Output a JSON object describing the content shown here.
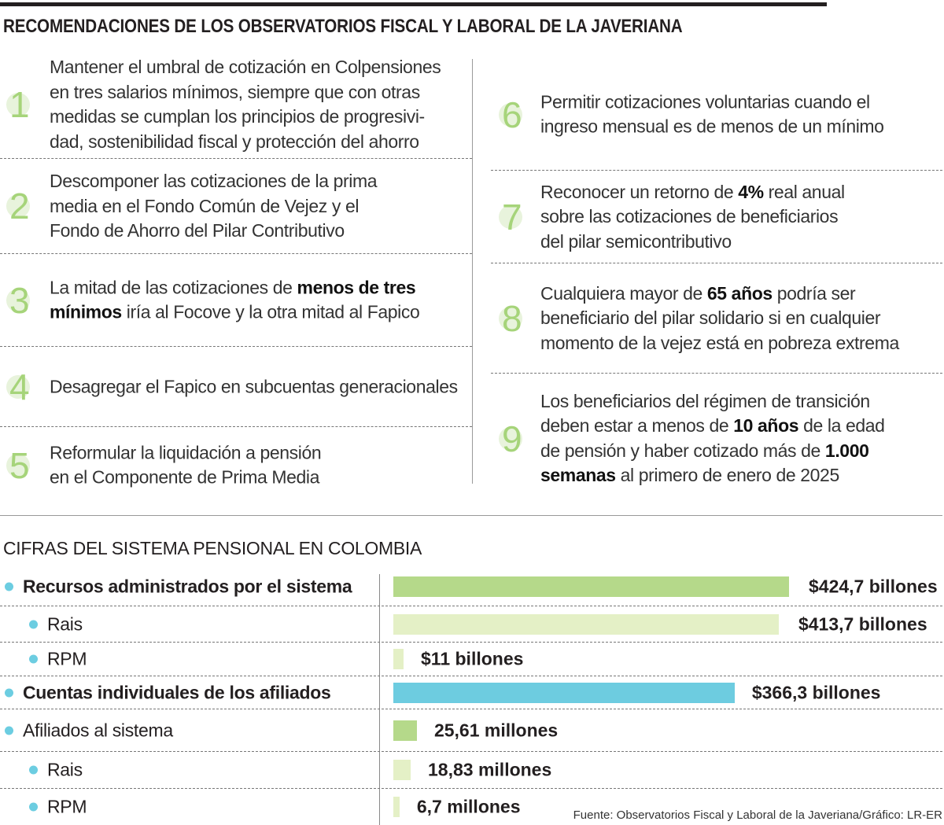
{
  "title": "RECOMENDACIONES DE LOS OBSERVATORIOS FISCAL Y LABORAL DE LA JAVERIANA",
  "recommendations": [
    {
      "number": "1",
      "lines": [
        [
          {
            "t": "Mantener el umbral de cotización en Colpensiones"
          }
        ],
        [
          {
            "t": "en tres salarios mínimos, siempre que con otras"
          }
        ],
        [
          {
            "t": "medidas se cumplan los principios de progresivi-"
          }
        ],
        [
          {
            "t": "dad, sostenibilidad fiscal y protección del ahorro"
          }
        ]
      ]
    },
    {
      "number": "2",
      "lines": [
        [
          {
            "t": "Descomponer las cotizaciones de la prima"
          }
        ],
        [
          {
            "t": "media en el Fondo Común de Vejez y  el"
          }
        ],
        [
          {
            "t": "Fondo de Ahorro del Pilar Contributivo"
          }
        ]
      ]
    },
    {
      "number": "3",
      "lines": [
        [
          {
            "t": "La mitad de las cotizaciones de "
          },
          {
            "t": "menos de tres",
            "b": true
          }
        ],
        [
          {
            "t": "mínimos",
            "b": true
          },
          {
            "t": " iría al Focove y la otra mitad al Fapico"
          }
        ]
      ]
    },
    {
      "number": "4",
      "lines": [
        [
          {
            "t": "Desagregar el Fapico en subcuentas generacionales"
          }
        ]
      ]
    },
    {
      "number": "5",
      "lines": [
        [
          {
            "t": "Reformular la liquidación a pensión"
          }
        ],
        [
          {
            "t": "en el Componente de Prima Media"
          }
        ]
      ]
    },
    {
      "number": "6",
      "lines": [
        [
          {
            "t": "Permitir cotizaciones voluntarias cuando el"
          }
        ],
        [
          {
            "t": "ingreso mensual es de menos de un mínimo"
          }
        ]
      ]
    },
    {
      "number": "7",
      "lines": [
        [
          {
            "t": "Reconocer un retorno de "
          },
          {
            "t": "4%",
            "b": true
          },
          {
            "t": " real anual"
          }
        ],
        [
          {
            "t": "sobre las cotizaciones de beneficiarios"
          }
        ],
        [
          {
            "t": "del pilar semicontributivo"
          }
        ]
      ]
    },
    {
      "number": "8",
      "lines": [
        [
          {
            "t": "Cualquiera mayor de "
          },
          {
            "t": "65 años",
            "b": true
          },
          {
            "t": " podría ser"
          }
        ],
        [
          {
            "t": "beneficiario del pilar solidario si en cualquier"
          }
        ],
        [
          {
            "t": "momento de la vejez está en pobreza extrema"
          }
        ]
      ]
    },
    {
      "number": "9",
      "lines": [
        [
          {
            "t": "Los beneficiarios del régimen de transición"
          }
        ],
        [
          {
            "t": "deben estar a menos de "
          },
          {
            "t": "10 años",
            "b": true
          },
          {
            "t": " de la edad"
          }
        ],
        [
          {
            "t": "de pensión y haber cotizado más de "
          },
          {
            "t": "1.000",
            "b": true
          }
        ],
        [
          {
            "t": "semanas",
            "b": true
          },
          {
            "t": " al primero de enero de 2025"
          }
        ]
      ]
    }
  ],
  "chart_data": {
    "type": "bar",
    "orientation": "horizontal",
    "title": "CIFRAS DEL SISTEMA PENSIONAL EN COLOMBIA",
    "colors": {
      "primary": "#b5d98a",
      "secondary": "#e4f0c6",
      "accounts": "#6dcce0",
      "bullet": "#6ccde1"
    },
    "rows": [
      {
        "label": "Recursos administrados por el sistema",
        "bold": true,
        "indent": false,
        "value": 424.7,
        "unit": "billones",
        "value_label": "$424,7 billones",
        "color": "primary"
      },
      {
        "label": "Rais",
        "bold": false,
        "indent": true,
        "value": 413.7,
        "unit": "billones",
        "value_label": "$413,7 billones",
        "color": "secondary"
      },
      {
        "label": "RPM",
        "bold": false,
        "indent": true,
        "value": 11,
        "unit": "billones",
        "value_label": "$11 billones",
        "color": "secondary"
      },
      {
        "label": "Cuentas individuales de los afiliados",
        "bold": true,
        "indent": false,
        "value": 366.3,
        "unit": "billones",
        "value_label": "$366,3 billones",
        "color": "accounts"
      },
      {
        "label": "Afiliados al sistema",
        "bold": false,
        "indent": false,
        "value": 25.61,
        "unit": "millones",
        "value_label": "25,61 millones",
        "color": "primary"
      },
      {
        "label": "Rais",
        "bold": false,
        "indent": true,
        "value": 18.83,
        "unit": "millones",
        "value_label": "18,83 millones",
        "color": "secondary"
      },
      {
        "label": "RPM",
        "bold": false,
        "indent": true,
        "value": 6.7,
        "unit": "millones",
        "value_label": "6,7 millones",
        "color": "secondary"
      }
    ]
  },
  "source": "Fuente: Observatorios Fiscal y Laboral de la Javeriana/Gráfico: LR-ER"
}
